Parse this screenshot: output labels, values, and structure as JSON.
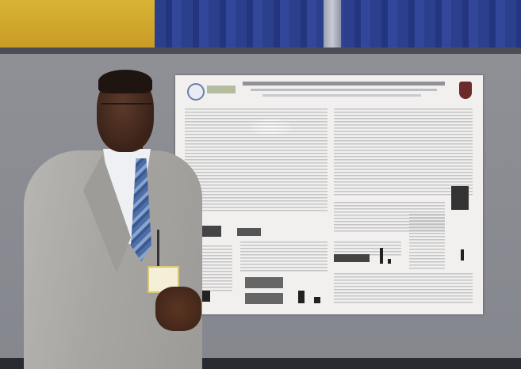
{
  "scene": {
    "description_type": "photo",
    "colors": {
      "curtain_yellow": "#d8b435",
      "curtain_blue": "#2c3f8c",
      "board_gray": "#8f9096",
      "poster_bg": "#f1f0ee",
      "jacket": "#a8a6a2",
      "tie": "#4d6fa8"
    }
  }
}
